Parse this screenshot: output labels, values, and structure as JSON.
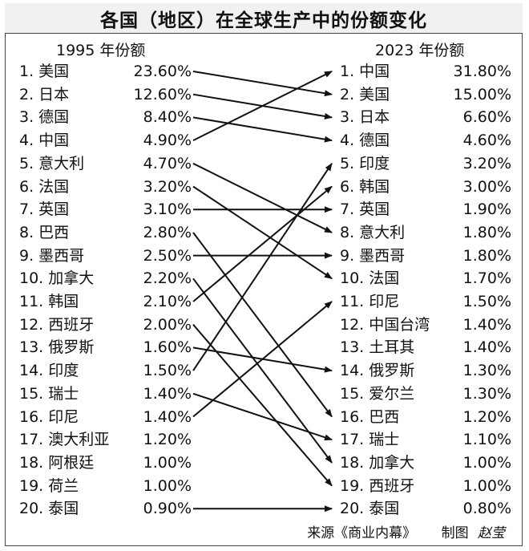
{
  "title": "各国（地区）在全球生产中的份额变化",
  "left_header": "1995 年份额",
  "right_header": "2023 年份额",
  "footer": {
    "source": "来源《商业内幕》",
    "credit": "制图",
    "author": "赵莹"
  },
  "colors": {
    "arrow": "#111111",
    "title_bg": "#f1f1f1",
    "border": "#444444"
  },
  "chart_data": {
    "type": "table",
    "title": "各国（地区）在全球生产中的份额变化",
    "left": [
      {
        "rank": "1.",
        "name": "美国",
        "value": "23.60%"
      },
      {
        "rank": "2.",
        "name": "日本",
        "value": "12.60%"
      },
      {
        "rank": "3.",
        "name": "德国",
        "value": "8.40%"
      },
      {
        "rank": "4.",
        "name": "中国",
        "value": "4.90%"
      },
      {
        "rank": "5.",
        "name": "意大利",
        "value": "4.70%"
      },
      {
        "rank": "6.",
        "name": "法国",
        "value": "3.20%"
      },
      {
        "rank": "7.",
        "name": "英国",
        "value": "3.10%"
      },
      {
        "rank": "8.",
        "name": "巴西",
        "value": "2.80%"
      },
      {
        "rank": "9.",
        "name": "墨西哥",
        "value": "2.50%"
      },
      {
        "rank": "10.",
        "name": "加拿大",
        "value": "2.20%"
      },
      {
        "rank": "11.",
        "name": "韩国",
        "value": "2.10%"
      },
      {
        "rank": "12.",
        "name": "西班牙",
        "value": "2.00%"
      },
      {
        "rank": "13.",
        "name": "俄罗斯",
        "value": "1.60%"
      },
      {
        "rank": "14.",
        "name": "印度",
        "value": "1.50%"
      },
      {
        "rank": "15.",
        "name": "瑞士",
        "value": "1.40%"
      },
      {
        "rank": "16.",
        "name": "印尼",
        "value": "1.40%"
      },
      {
        "rank": "17.",
        "name": "澳大利亚",
        "value": "1.20%"
      },
      {
        "rank": "18.",
        "name": "阿根廷",
        "value": "1.00%"
      },
      {
        "rank": "19.",
        "name": "荷兰",
        "value": "1.00%"
      },
      {
        "rank": "20.",
        "name": "泰国",
        "value": "0.90%"
      }
    ],
    "right": [
      {
        "rank": "1.",
        "name": "中国",
        "value": "31.80%"
      },
      {
        "rank": "2.",
        "name": "美国",
        "value": "15.00%"
      },
      {
        "rank": "3.",
        "name": "日本",
        "value": "6.60%"
      },
      {
        "rank": "4.",
        "name": "德国",
        "value": "4.60%"
      },
      {
        "rank": "5.",
        "name": "印度",
        "value": "3.20%"
      },
      {
        "rank": "6.",
        "name": "韩国",
        "value": "3.00%"
      },
      {
        "rank": "7.",
        "name": "英国",
        "value": "1.90%"
      },
      {
        "rank": "8.",
        "name": "意大利",
        "value": "1.80%"
      },
      {
        "rank": "9.",
        "name": "墨西哥",
        "value": "1.80%"
      },
      {
        "rank": "10.",
        "name": "法国",
        "value": "1.70%"
      },
      {
        "rank": "11.",
        "name": "印尼",
        "value": "1.50%"
      },
      {
        "rank": "12.",
        "name": "中国台湾",
        "value": "1.40%"
      },
      {
        "rank": "13.",
        "name": "土耳其",
        "value": "1.40%"
      },
      {
        "rank": "14.",
        "name": "俄罗斯",
        "value": "1.30%"
      },
      {
        "rank": "15.",
        "name": "爱尔兰",
        "value": "1.30%"
      },
      {
        "rank": "16.",
        "name": "巴西",
        "value": "1.20%"
      },
      {
        "rank": "17.",
        "name": "瑞士",
        "value": "1.10%"
      },
      {
        "rank": "18.",
        "name": "加拿大",
        "value": "1.00%"
      },
      {
        "rank": "19.",
        "name": "西班牙",
        "value": "1.00%"
      },
      {
        "rank": "20.",
        "name": "泰国",
        "value": "0.80%"
      }
    ],
    "links": [
      [
        1,
        2
      ],
      [
        2,
        3
      ],
      [
        3,
        4
      ],
      [
        4,
        1
      ],
      [
        5,
        8
      ],
      [
        6,
        10
      ],
      [
        7,
        7
      ],
      [
        8,
        16
      ],
      [
        9,
        9
      ],
      [
        10,
        18
      ],
      [
        11,
        6
      ],
      [
        12,
        19
      ],
      [
        13,
        14
      ],
      [
        14,
        5
      ],
      [
        15,
        17
      ],
      [
        16,
        11
      ],
      [
        20,
        20
      ]
    ]
  }
}
